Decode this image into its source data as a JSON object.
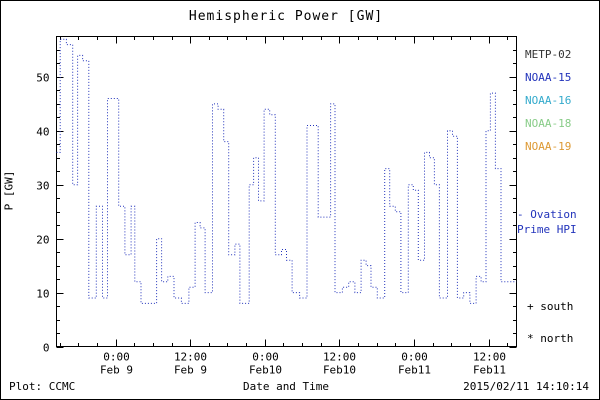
{
  "footer": {
    "plot_label": "Plot: CCMC",
    "timestamp": "2015/02/11 14:10:14"
  },
  "legend": {
    "satellites": [
      {
        "label": "METP-02",
        "color": "#333333"
      },
      {
        "label": "NOAA-15",
        "color": "#2233bb"
      },
      {
        "label": "NOAA-16",
        "color": "#33aacc"
      },
      {
        "label": "NOAA-18",
        "color": "#88cc88"
      },
      {
        "label": "NOAA-19",
        "color": "#dd9933"
      }
    ],
    "note_lines": [
      "- Ovation",
      "Prime HPI"
    ],
    "note_color": "#2233bb",
    "south_marker": "+ south",
    "north_marker": "* north"
  },
  "chart_data": {
    "type": "line",
    "style": "stepped-dotted",
    "title": "Hemispheric Power [GW]",
    "xlabel": "Date and Time",
    "ylabel": "P [GW]",
    "ylim": [
      0,
      57.5
    ],
    "xlim_hours": [
      -9.5,
      64.5
    ],
    "x_hours_reference": "hours relative to Feb 9 00:00",
    "y_ticks": [
      0,
      10,
      20,
      30,
      40,
      50
    ],
    "x_ticks": [
      {
        "hour": 0,
        "line1": "0:00",
        "line2": "Feb 9"
      },
      {
        "hour": 12,
        "line1": "12:00",
        "line2": "Feb 9"
      },
      {
        "hour": 24,
        "line1": "0:00",
        "line2": "Feb10"
      },
      {
        "hour": 36,
        "line1": "12:00",
        "line2": "Feb10"
      },
      {
        "hour": 48,
        "line1": "0:00",
        "line2": "Feb11"
      },
      {
        "hour": 60,
        "line1": "12:00",
        "line2": "Feb11"
      }
    ],
    "line_color": "#2233bb",
    "points": [
      [
        -9.5,
        36
      ],
      [
        -8.9,
        57
      ],
      [
        -7.9,
        56
      ],
      [
        -6.9,
        30
      ],
      [
        -6.1,
        54
      ],
      [
        -5.3,
        53
      ],
      [
        -4.3,
        9
      ],
      [
        -3.1,
        26
      ],
      [
        -2.1,
        9
      ],
      [
        -1.3,
        46
      ],
      [
        -0.4,
        46
      ],
      [
        0.5,
        26
      ],
      [
        1.5,
        17
      ],
      [
        2.5,
        26
      ],
      [
        3.1,
        12
      ],
      [
        4.1,
        8
      ],
      [
        5.6,
        8
      ],
      [
        6.6,
        20
      ],
      [
        7.4,
        12
      ],
      [
        8.4,
        13
      ],
      [
        9.4,
        9
      ],
      [
        10.6,
        8
      ],
      [
        11.8,
        11
      ],
      [
        12.8,
        23
      ],
      [
        13.6,
        22
      ],
      [
        14.4,
        10
      ],
      [
        15.6,
        45
      ],
      [
        16.5,
        44
      ],
      [
        17.4,
        38
      ],
      [
        18.2,
        17
      ],
      [
        19.2,
        19
      ],
      [
        20.0,
        8
      ],
      [
        21.5,
        30
      ],
      [
        22.2,
        35
      ],
      [
        23.0,
        27
      ],
      [
        23.9,
        44
      ],
      [
        24.8,
        43
      ],
      [
        25.7,
        17
      ],
      [
        26.7,
        18
      ],
      [
        27.5,
        16
      ],
      [
        28.4,
        10
      ],
      [
        29.6,
        9
      ],
      [
        30.8,
        41
      ],
      [
        31.7,
        41
      ],
      [
        32.6,
        24
      ],
      [
        33.6,
        24
      ],
      [
        34.6,
        45
      ],
      [
        35.3,
        10
      ],
      [
        36.5,
        11
      ],
      [
        37.5,
        12
      ],
      [
        38.5,
        10
      ],
      [
        39.5,
        16
      ],
      [
        40.3,
        15
      ],
      [
        41.1,
        11
      ],
      [
        42.1,
        9
      ],
      [
        43.3,
        33
      ],
      [
        44.1,
        26
      ],
      [
        45.0,
        25
      ],
      [
        45.9,
        10
      ],
      [
        47.1,
        30
      ],
      [
        47.9,
        29
      ],
      [
        48.7,
        16
      ],
      [
        49.7,
        36
      ],
      [
        50.5,
        35
      ],
      [
        51.3,
        30
      ],
      [
        52.1,
        9
      ],
      [
        53.4,
        40
      ],
      [
        54.2,
        39
      ],
      [
        55.0,
        9
      ],
      [
        56.0,
        10
      ],
      [
        57.0,
        8
      ],
      [
        58.0,
        13
      ],
      [
        58.8,
        12
      ],
      [
        59.6,
        40
      ],
      [
        60.3,
        47
      ],
      [
        61.1,
        33
      ],
      [
        62.0,
        12
      ]
    ]
  }
}
